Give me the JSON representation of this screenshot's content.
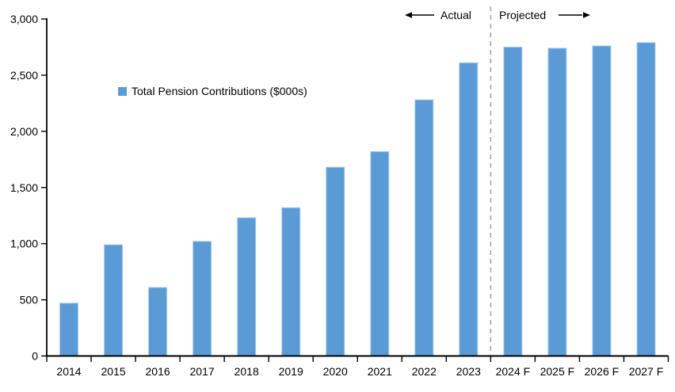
{
  "colors": {
    "bar_fill": "#5B9BD5",
    "bar_border": "#A8CBEA",
    "axis": "#000000",
    "text": "#000000",
    "divider": "#A6A6A6"
  },
  "chart_data": {
    "type": "bar",
    "title": "",
    "xlabel": "",
    "ylabel": "",
    "grid": false,
    "legend": [
      "Total Pension Contributions ($000s)"
    ],
    "legend_position": "inside-upper-left",
    "categories": [
      "2014",
      "2015",
      "2016",
      "2017",
      "2018",
      "2019",
      "2020",
      "2021",
      "2022",
      "2023",
      "2024 F",
      "2025 F",
      "2026 F",
      "2027 F"
    ],
    "values": [
      470,
      990,
      610,
      1020,
      1230,
      1320,
      1680,
      1820,
      2280,
      2610,
      2750,
      2740,
      2760,
      2790
    ],
    "ylim": [
      0,
      3000
    ],
    "ytick_interval": 500,
    "ytick_labels": [
      "0",
      "500",
      "1,000",
      "1,500",
      "2,000",
      "2,500",
      "3,000"
    ],
    "annotations": [
      {
        "text": "Actual",
        "arrow": "left",
        "applies_to": "2014-2023"
      },
      {
        "text": "Projected",
        "arrow": "right",
        "applies_to": "2024 F-2027 F"
      }
    ],
    "divider": {
      "style": "dashed-vertical",
      "between": [
        "2023",
        "2024 F"
      ]
    }
  }
}
